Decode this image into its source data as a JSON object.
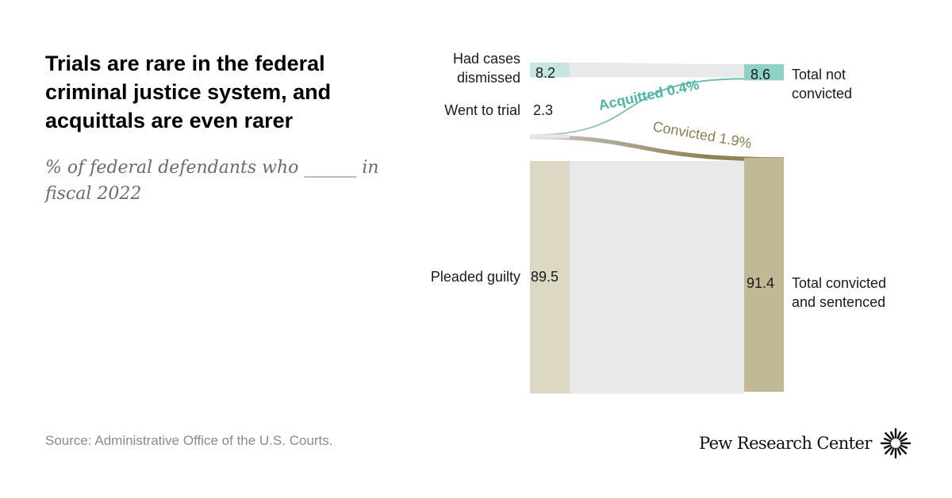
{
  "header": {
    "title": "Trials are rare in the federal criminal justice system, and acquittals are even rarer",
    "subtitle": "% of federal defendants who ______ in fiscal 2022"
  },
  "footer": {
    "source": "Source: Administrative Office of the U.S. Courts.",
    "brand": "Pew Research Center"
  },
  "chart_data": {
    "type": "sankey",
    "units": "%",
    "left_nodes": [
      {
        "label": [
          "Had cases",
          "dismissed"
        ],
        "value": 8.2,
        "value_label": "8.2",
        "color": "#c7e5df"
      },
      {
        "label": [
          "Went to trial"
        ],
        "value": 2.3,
        "value_label": "2.3",
        "color": "#e7e7e7"
      },
      {
        "label": [
          "Pleaded guilty"
        ],
        "value": 89.5,
        "value_label": "89.5",
        "color": "#dcd8c4"
      }
    ],
    "right_nodes": [
      {
        "label": [
          "Total not",
          "convicted"
        ],
        "value": 8.6,
        "value_label": "8.6",
        "color": "#8fd1c4"
      },
      {
        "label": [
          "Total convicted",
          "and sentenced"
        ],
        "value": 91.4,
        "value_label": "91.4",
        "color": "#c1b895"
      }
    ],
    "flows": [
      {
        "from": "Had cases dismissed",
        "to": "Total not convicted",
        "value": 8.2,
        "label": "",
        "color": "#e8e9ea"
      },
      {
        "from": "Went to trial",
        "to": "Total not convicted",
        "value": 0.4,
        "label": "Acquitted 0.4%",
        "color": "#68c0ad"
      },
      {
        "from": "Went to trial",
        "to": "Total convicted and sentenced",
        "value": 1.9,
        "label": "Convicted 1.9%",
        "color": "#8f8255"
      },
      {
        "from": "Pleaded guilty",
        "to": "Total convicted and sentenced",
        "value": 89.5,
        "label": "",
        "color": "#e8e9ea"
      }
    ],
    "colors": {
      "acquitted_label": "#4fb5a2",
      "convicted_label": "#8a7d54",
      "trial_flow_start": "#c9c9c9",
      "node_text": "#1a1a1a"
    }
  }
}
